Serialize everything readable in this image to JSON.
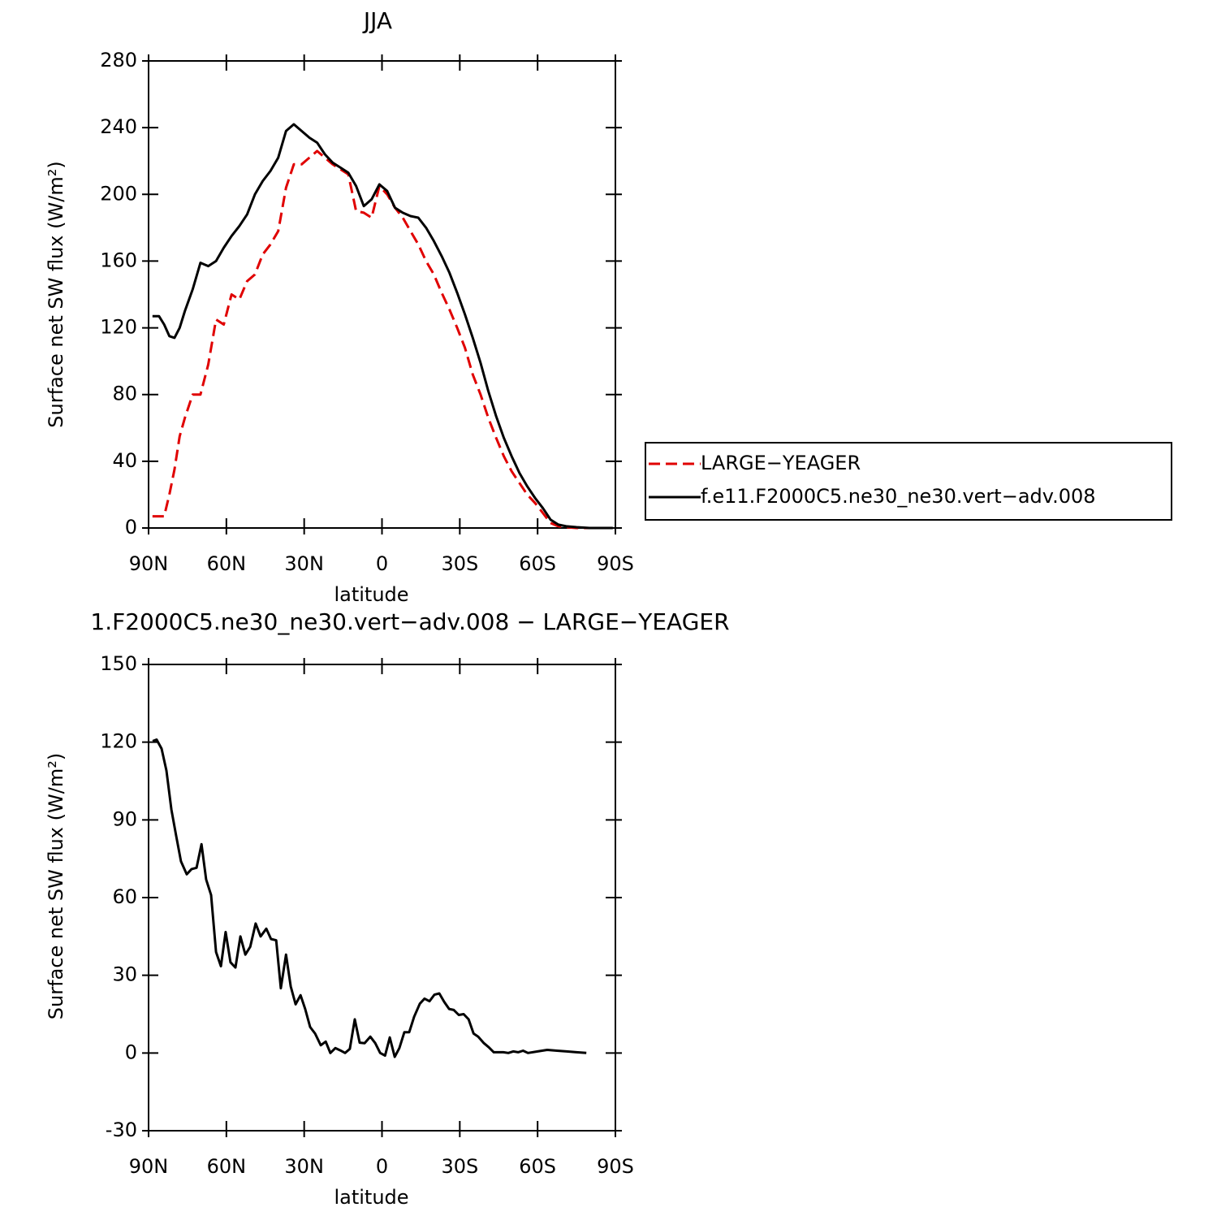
{
  "chart_data": [
    {
      "type": "line",
      "title": "JJA",
      "xlabel": "latitude",
      "ylabel": "Surface net SW flux (W/m²)",
      "x": [
        88.5,
        86,
        84,
        82,
        80,
        78,
        76,
        73,
        70,
        67,
        64,
        61,
        58,
        55,
        52,
        49,
        46,
        43,
        40,
        37,
        34,
        31,
        28,
        25,
        22,
        19,
        16,
        13,
        10,
        7,
        4,
        1,
        -2,
        -5,
        -8,
        -11,
        -14,
        -17,
        -20,
        -23,
        -26,
        -29,
        -32,
        -35,
        -38,
        -41,
        -44,
        -47,
        -50,
        -53,
        -56,
        -59,
        -62,
        -65,
        -68,
        -71,
        -75,
        -80,
        -85,
        -89
      ],
      "series": [
        {
          "name": "LARGE−YEAGER",
          "color": "#e00000",
          "line_style": "dashed",
          "values": [
            7,
            7,
            7,
            20,
            35,
            55,
            66,
            80,
            80,
            98,
            125,
            122,
            140,
            137,
            148,
            152,
            164,
            170,
            178,
            204,
            218,
            218,
            222,
            226,
            222,
            218,
            215,
            212,
            190,
            189,
            186,
            205,
            200,
            192,
            186,
            178,
            170,
            160,
            152,
            141,
            131,
            120,
            108,
            92,
            80,
            66,
            54,
            43,
            34,
            27,
            20,
            15,
            9,
            3,
            1,
            0.5,
            0,
            0,
            0,
            0
          ]
        },
        {
          "name": "f.e11.F2000C5.ne30_ne30.vert−adv.008",
          "color": "#000000",
          "line_style": "solid",
          "values": [
            127,
            127,
            122,
            115,
            114,
            120,
            130,
            143,
            159,
            157,
            160,
            168,
            175,
            181,
            188,
            200,
            208,
            214,
            222,
            238,
            242,
            238,
            234,
            231,
            224,
            219,
            216,
            213,
            205,
            193,
            197,
            206,
            202,
            192,
            189,
            187,
            186,
            180,
            172,
            163,
            153,
            141,
            128,
            114,
            99,
            82,
            67,
            54,
            43,
            33,
            25,
            18,
            12,
            5,
            2,
            1,
            0.5,
            0,
            0,
            0
          ]
        }
      ],
      "xlim": [
        90,
        -90
      ],
      "xticks": [
        {
          "value": 90,
          "label": "90N"
        },
        {
          "value": 60,
          "label": "60N"
        },
        {
          "value": 30,
          "label": "30N"
        },
        0,
        {
          "value": -30,
          "label": "30S"
        },
        {
          "value": -60,
          "label": "60S"
        },
        {
          "value": -90,
          "label": "90S"
        }
      ],
      "ylim": [
        0,
        280
      ],
      "yticks": [
        0,
        40,
        80,
        120,
        160,
        200,
        240,
        280
      ],
      "legend": "outside-right"
    },
    {
      "type": "line",
      "title": "1.F2000C5.ne30_ne30.vert−adv.008 − LARGE−YEAGER",
      "xlabel": "latitude",
      "ylabel": "Surface net SW flux (W/m²)",
      "x": [
        88.4,
        86.9,
        85,
        83.1,
        81.2,
        79.4,
        77.5,
        75.3,
        73.4,
        71.5,
        69.6,
        67.8,
        65.9,
        64,
        62.1,
        60.3,
        58.4,
        56.5,
        54.6,
        52.7,
        50.8,
        48.7,
        46.8,
        44.6,
        42.8,
        40.8,
        39,
        37,
        35.2,
        33.3,
        31.4,
        29.6,
        27.7,
        25.8,
        23.6,
        21.7,
        19.9,
        18,
        16.1,
        14.2,
        12.4,
        10.5,
        8.6,
        6.7,
        4.5,
        2.6,
        0.7,
        -1.2,
        -3,
        -4.9,
        -6.7,
        -8.6,
        -10.5,
        -12.4,
        -14.6,
        -16.4,
        -18.3,
        -20.2,
        -22.1,
        -24,
        -25.9,
        -27.7,
        -29.6,
        -31.5,
        -33.4,
        -35.3,
        -37.1,
        -39.3,
        -41.2,
        -43.1,
        -46.8,
        -48.7,
        -50.6,
        -52.5,
        -54.4,
        -56.3,
        -60,
        -63.7,
        -67.5,
        -71.2,
        -75,
        -78.8
      ],
      "values": [
        120.4,
        121,
        117.5,
        109,
        94,
        84,
        74,
        69,
        71,
        71.5,
        80.6,
        67,
        61,
        39,
        33.5,
        46.7,
        35,
        33,
        45,
        38,
        41,
        50,
        45,
        48,
        44,
        43.5,
        25,
        38,
        25.7,
        18.8,
        22.3,
        17,
        10,
        7.5,
        3,
        4.4,
        0,
        1.9,
        1,
        0,
        1.6,
        13,
        4,
        3.8,
        6.3,
        3.8,
        0,
        -1,
        6,
        -1.5,
        1.9,
        8,
        8,
        14,
        19,
        21,
        20,
        22.5,
        23,
        19.7,
        17,
        16.6,
        14.7,
        15,
        13,
        7.5,
        6.3,
        3.8,
        2.2,
        0.3,
        0.3,
        0,
        0.6,
        0.3,
        0.9,
        0,
        0.6,
        1.2,
        0.9,
        0.6,
        0.3,
        0
      ],
      "color": "#000000",
      "xlim": [
        90,
        -90
      ],
      "xticks": [
        {
          "value": 90,
          "label": "90N"
        },
        {
          "value": 60,
          "label": "60N"
        },
        {
          "value": 30,
          "label": "30N"
        },
        0,
        {
          "value": -30,
          "label": "30S"
        },
        {
          "value": -60,
          "label": "60S"
        },
        {
          "value": -90,
          "label": "90S"
        }
      ],
      "ylim": [
        -30,
        150
      ],
      "yticks": [
        -30,
        0,
        30,
        60,
        90,
        120,
        150
      ]
    }
  ]
}
